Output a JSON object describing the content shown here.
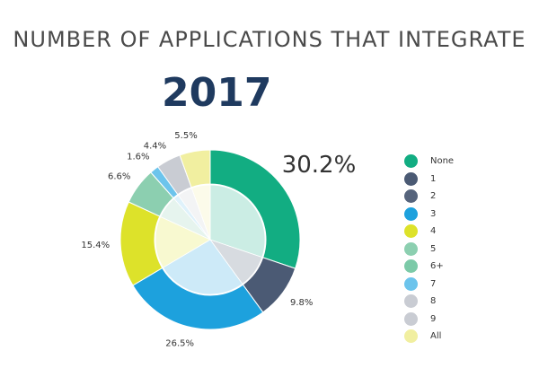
{
  "headline": "NUMBER OF APPLICATIONS THAT INTEGRATE",
  "year": "2017",
  "chart_data": {
    "type": "pie",
    "style": "donut",
    "title": "NUMBER OF APPLICATIONS THAT INTEGRATE",
    "subtitle": "2017",
    "legend_position": "right",
    "slices": [
      {
        "label": "None",
        "value": 30.2,
        "value_label": "30.2%",
        "color": "#12ad82"
      },
      {
        "label": "1",
        "value": 9.8,
        "value_label": "9.8%",
        "color": "#4b5a74"
      },
      {
        "label": "2",
        "value": 0,
        "value_label": "",
        "color": "#56647c"
      },
      {
        "label": "3",
        "value": 26.5,
        "value_label": "26.5%",
        "color": "#1da1dd"
      },
      {
        "label": "4",
        "value": 15.4,
        "value_label": "15.4%",
        "color": "#dde22a"
      },
      {
        "label": "5",
        "value": 6.6,
        "value_label": "6.6%",
        "color": "#8ccfb0"
      },
      {
        "label": "6+",
        "value": 0,
        "value_label": "",
        "color": "#7ccaa8"
      },
      {
        "label": "7",
        "value": 1.6,
        "value_label": "1.6%",
        "color": "#6cc4ec"
      },
      {
        "label": "8",
        "value": 0,
        "value_label": "",
        "color": "#c9ccd3"
      },
      {
        "label": "9",
        "value": 4.4,
        "value_label": "4.4%",
        "color": "#c9ccd3"
      },
      {
        "label": "All",
        "value": 5.5,
        "value_label": "5.5%",
        "color": "#f1efa0"
      }
    ]
  }
}
